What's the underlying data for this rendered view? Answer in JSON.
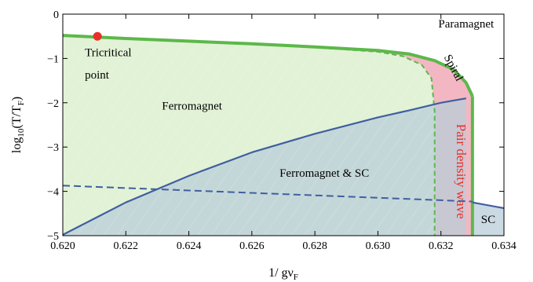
{
  "chart_data": {
    "type": "line",
    "xlabel": "1/ gν",
    "xlabel_sub": "F",
    "ylabel": "log",
    "ylabel_sub": "10",
    "ylabel_rest": "(T/T",
    "ylabel_sub2": "F",
    "ylabel_end": ")",
    "xlim": [
      0.62,
      0.634
    ],
    "ylim": [
      -5,
      0
    ],
    "x_ticks": [
      "0.620",
      "0.622",
      "0.624",
      "0.626",
      "0.628",
      "0.630",
      "0.632",
      "0.634"
    ],
    "x_tick_values": [
      0.62,
      0.622,
      0.624,
      0.626,
      0.628,
      0.63,
      0.632,
      0.634
    ],
    "y_ticks": [
      "0",
      "−1",
      "−2",
      "−3",
      "−4",
      "−5"
    ],
    "y_tick_values": [
      0,
      -1,
      -2,
      -3,
      -4,
      -5
    ],
    "colors": {
      "ferro_fill": "#e2f2d6",
      "sc_fill": "#b9cdd8",
      "pdw_fill": "#f3b7c3",
      "green": "#5cb84a",
      "blue": "#3f5fa0",
      "red_point": "#e8302a",
      "pdw_text": "#e8302a"
    },
    "series": [
      {
        "name": "Paramagnet boundary (upper, first order)",
        "style": "solid",
        "x": [
          0.62,
          0.622,
          0.624,
          0.626,
          0.628,
          0.63,
          0.631,
          0.6318,
          0.6324,
          0.6328,
          0.633
        ],
        "y": [
          -0.48,
          -0.55,
          -0.61,
          -0.67,
          -0.74,
          -0.82,
          -0.9,
          -1.05,
          -1.25,
          -1.55,
          -1.85
        ]
      },
      {
        "name": "Paramagnet boundary (vertical)",
        "style": "solid",
        "x": [
          0.633,
          0.633
        ],
        "y": [
          -1.85,
          -5.0
        ]
      },
      {
        "name": "Ferromagnet boundary (dashed)",
        "style": "dashed",
        "x": [
          0.62,
          0.622,
          0.624,
          0.626,
          0.628,
          0.63,
          0.6308,
          0.6314,
          0.6317,
          0.6318,
          0.6318
        ],
        "y": [
          -0.48,
          -0.55,
          -0.61,
          -0.67,
          -0.75,
          -0.85,
          -0.95,
          -1.15,
          -1.45,
          -2.2,
          -5.0
        ]
      },
      {
        "name": "SC boundary",
        "style": "solid",
        "x": [
          0.62,
          0.622,
          0.624,
          0.626,
          0.628,
          0.63,
          0.631,
          0.632,
          0.6328
        ],
        "y": [
          -4.98,
          -4.25,
          -3.65,
          -3.12,
          -2.7,
          -2.33,
          -2.17,
          -2.0,
          -1.9
        ]
      },
      {
        "name": "SC boundary (paramagnet side)",
        "style": "solid",
        "x": [
          0.633,
          0.634
        ],
        "y": [
          -4.25,
          -4.38
        ]
      },
      {
        "name": "dashed low-T line",
        "style": "dashed",
        "x": [
          0.62,
          0.624,
          0.628,
          0.632,
          0.633
        ],
        "y": [
          -3.87,
          -3.98,
          -4.09,
          -4.2,
          -4.23
        ]
      }
    ],
    "point": {
      "label": "Tricritical point",
      "x": 0.6211,
      "y": -0.5
    },
    "regions": [
      {
        "text": "Paramagnet",
        "x": 0.6328,
        "y": -0.3,
        "anchor": "middle"
      },
      {
        "text": "Tricritical",
        "x": 0.6207,
        "y": -0.95,
        "anchor": "start"
      },
      {
        "text": "point",
        "x": 0.6207,
        "y": -1.45,
        "anchor": "start"
      },
      {
        "text": "Ferromagnet",
        "x": 0.6241,
        "y": -2.15,
        "anchor": "middle"
      },
      {
        "text": "Ferromagnet & SC",
        "x": 0.6283,
        "y": -3.67,
        "anchor": "middle"
      },
      {
        "text": "SC",
        "x": 0.6335,
        "y": -4.72,
        "anchor": "middle"
      }
    ],
    "rotated_labels": [
      {
        "text": "Spiral",
        "x": 0.6323,
        "y": -1.25,
        "angle": 62,
        "color": "#000000"
      },
      {
        "text": "Pair density wave",
        "x": 0.6325,
        "y": -3.55,
        "angle": 90,
        "color": "#e8302a"
      }
    ]
  }
}
